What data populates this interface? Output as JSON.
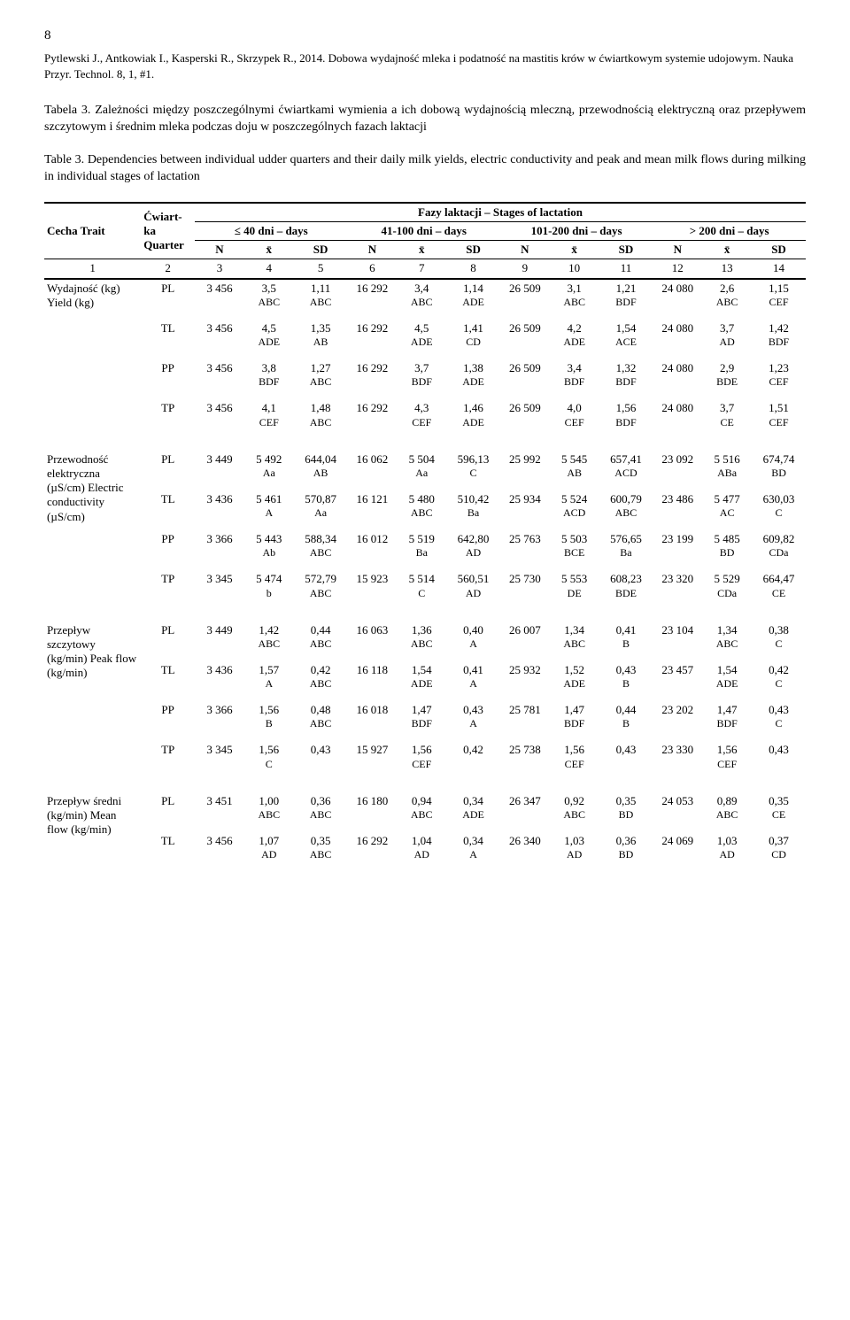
{
  "page_number": "8",
  "citation": "Pytlewski J., Antkowiak I., Kasperski R., Skrzypek R., 2014. Dobowa wydajność mleka i podatność na mastitis krów w ćwiartkowym systemie udojowym. Nauka Przyr. Technol. 8, 1, #1.",
  "caption_pl": "Tabela 3. Zależności między poszczególnymi ćwiartkami wymienia a ich dobową wydajnością mleczną, przewodnością elektryczną oraz przepływem szczytowym i średnim mleka podczas doju w poszczególnych fazach laktacji",
  "caption_en": "Table 3. Dependencies between individual udder quarters and their daily milk yields, electric conductivity and peak and mean milk flows during milking in individual stages of lactation",
  "head": {
    "trait": "Cecha Trait",
    "quarter": "Ćwiart-ka Quarter",
    "phases": "Fazy laktacji – Stages of lactation",
    "g1": "≤ 40 dni – days",
    "g2": "41-100 dni – days",
    "g3": "101-200 dni – days",
    "g4": "> 200 dni – days",
    "N": "N",
    "xbar": "x̄",
    "SD": "SD"
  },
  "colnums": [
    "1",
    "2",
    "3",
    "4",
    "5",
    "6",
    "7",
    "8",
    "9",
    "10",
    "11",
    "12",
    "13",
    "14"
  ],
  "sections": [
    {
      "trait": "Wydajność (kg) Yield (kg)",
      "rows": [
        {
          "q": "PL",
          "c": [
            "3 456",
            "3,5",
            "ABC",
            "1,11",
            "ABC",
            "16 292",
            "3,4",
            "ABC",
            "1,14",
            "ADE",
            "26 509",
            "3,1",
            "ABC",
            "1,21",
            "BDF",
            "24 080",
            "2,6",
            "ABC",
            "1,15",
            "CEF"
          ]
        },
        {
          "q": "TL",
          "c": [
            "3 456",
            "4,5",
            "ADE",
            "1,35",
            "AB",
            "16 292",
            "4,5",
            "ADE",
            "1,41",
            "CD",
            "26 509",
            "4,2",
            "ADE",
            "1,54",
            "ACE",
            "24 080",
            "3,7",
            "AD",
            "1,42",
            "BDF"
          ]
        },
        {
          "q": "PP",
          "c": [
            "3 456",
            "3,8",
            "BDF",
            "1,27",
            "ABC",
            "16 292",
            "3,7",
            "BDF",
            "1,38",
            "ADE",
            "26 509",
            "3,4",
            "BDF",
            "1,32",
            "BDF",
            "24 080",
            "2,9",
            "BDE",
            "1,23",
            "CEF"
          ]
        },
        {
          "q": "TP",
          "c": [
            "3 456",
            "4,1",
            "CEF",
            "1,48",
            "ABC",
            "16 292",
            "4,3",
            "CEF",
            "1,46",
            "ADE",
            "26 509",
            "4,0",
            "CEF",
            "1,56",
            "BDF",
            "24 080",
            "3,7",
            "CE",
            "1,51",
            "CEF"
          ]
        }
      ]
    },
    {
      "trait": "Przewodność elektryczna (µS/cm) Electric conductivity (µS/cm)",
      "rows": [
        {
          "q": "PL",
          "c": [
            "3 449",
            "5 492",
            "Aa",
            "644,04",
            "AB",
            "16 062",
            "5 504",
            "Aa",
            "596,13",
            "C",
            "25 992",
            "5 545",
            "AB",
            "657,41",
            "ACD",
            "23 092",
            "5 516",
            "ABa",
            "674,74",
            "BD"
          ]
        },
        {
          "q": "TL",
          "c": [
            "3 436",
            "5 461",
            "A",
            "570,87",
            "Aa",
            "16 121",
            "5 480",
            "ABC",
            "510,42",
            "Ba",
            "25 934",
            "5 524",
            "ACD",
            "600,79",
            "ABC",
            "23 486",
            "5 477",
            "AC",
            "630,03",
            "C"
          ]
        },
        {
          "q": "PP",
          "c": [
            "3 366",
            "5 443",
            "Ab",
            "588,34",
            "ABC",
            "16 012",
            "5 519",
            "Ba",
            "642,80",
            "AD",
            "25 763",
            "5 503",
            "BCE",
            "576,65",
            "Ba",
            "23 199",
            "5 485",
            "BD",
            "609,82",
            "CDa"
          ]
        },
        {
          "q": "TP",
          "c": [
            "3 345",
            "5 474",
            "b",
            "572,79",
            "ABC",
            "15 923",
            "5 514",
            "C",
            "560,51",
            "AD",
            "25 730",
            "5 553",
            "DE",
            "608,23",
            "BDE",
            "23 320",
            "5 529",
            "CDa",
            "664,47",
            "CE"
          ]
        }
      ]
    },
    {
      "trait": "Przepływ szczytowy (kg/min) Peak flow (kg/min)",
      "rows": [
        {
          "q": "PL",
          "c": [
            "3 449",
            "1,42",
            "ABC",
            "0,44",
            "ABC",
            "16 063",
            "1,36",
            "ABC",
            "0,40",
            "A",
            "26 007",
            "1,34",
            "ABC",
            "0,41",
            "B",
            "23 104",
            "1,34",
            "ABC",
            "0,38",
            "C"
          ]
        },
        {
          "q": "TL",
          "c": [
            "3 436",
            "1,57",
            "A",
            "0,42",
            "ABC",
            "16 118",
            "1,54",
            "ADE",
            "0,41",
            "A",
            "25 932",
            "1,52",
            "ADE",
            "0,43",
            "B",
            "23 457",
            "1,54",
            "ADE",
            "0,42",
            "C"
          ]
        },
        {
          "q": "PP",
          "c": [
            "3 366",
            "1,56",
            "B",
            "0,48",
            "ABC",
            "16 018",
            "1,47",
            "BDF",
            "0,43",
            "A",
            "25 781",
            "1,47",
            "BDF",
            "0,44",
            "B",
            "23 202",
            "1,47",
            "BDF",
            "0,43",
            "C"
          ]
        },
        {
          "q": "TP",
          "c": [
            "3 345",
            "1,56",
            "C",
            "0,43",
            "",
            "15 927",
            "1,56",
            "CEF",
            "0,42",
            "",
            "25 738",
            "1,56",
            "CEF",
            "0,43",
            "",
            "23 330",
            "1,56",
            "CEF",
            "0,43",
            ""
          ]
        }
      ]
    },
    {
      "trait": "Przepływ średni (kg/min) Mean flow (kg/min)",
      "rows": [
        {
          "q": "PL",
          "c": [
            "3 451",
            "1,00",
            "ABC",
            "0,36",
            "ABC",
            "16 180",
            "0,94",
            "ABC",
            "0,34",
            "ADE",
            "26 347",
            "0,92",
            "ABC",
            "0,35",
            "BD",
            "24 053",
            "0,89",
            "ABC",
            "0,35",
            "CE"
          ]
        },
        {
          "q": "TL",
          "c": [
            "3 456",
            "1,07",
            "AD",
            "0,35",
            "ABC",
            "16 292",
            "1,04",
            "AD",
            "0,34",
            "A",
            "26 340",
            "1,03",
            "AD",
            "0,36",
            "BD",
            "24 069",
            "1,03",
            "AD",
            "0,37",
            "CD"
          ]
        }
      ]
    }
  ]
}
